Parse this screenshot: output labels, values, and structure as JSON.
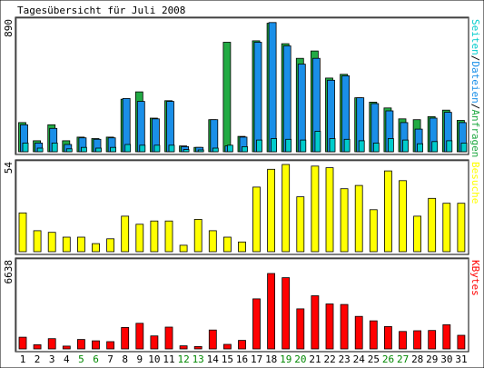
{
  "chart_data": [
    {
      "type": "bar",
      "title": "Tagesübersicht für Juli 2008",
      "ymax_label": "890",
      "legend_parts": [
        {
          "text": "Seiten",
          "color": "#00cccc"
        },
        {
          "text": "/",
          "color": "#000000"
        },
        {
          "text": "Dateien",
          "color": "#1a8fe8"
        },
        {
          "text": "/",
          "color": "#000000"
        },
        {
          "text": "Anfragen",
          "color": "#22aa44"
        }
      ],
      "ylim": [
        0,
        890
      ],
      "x": [
        1,
        2,
        3,
        4,
        5,
        6,
        7,
        8,
        9,
        10,
        11,
        12,
        13,
        14,
        15,
        16,
        17,
        18,
        19,
        20,
        21,
        22,
        23,
        24,
        25,
        26,
        27,
        28,
        29,
        30,
        31
      ],
      "series": [
        {
          "name": "Anfragen",
          "color": "#22aa44",
          "values": [
            200,
            75,
            185,
            75,
            100,
            90,
            100,
            360,
            410,
            230,
            350,
            40,
            30,
            220,
            750,
            105,
            760,
            880,
            740,
            640,
            690,
            505,
            530,
            370,
            340,
            300,
            225,
            220,
            240,
            285,
            215
          ]
        },
        {
          "name": "Dateien",
          "color": "#1a8fe8",
          "values": [
            185,
            60,
            160,
            50,
            95,
            85,
            95,
            365,
            345,
            225,
            345,
            35,
            30,
            220,
            40,
            100,
            750,
            885,
            725,
            600,
            640,
            490,
            520,
            370,
            330,
            280,
            200,
            155,
            230,
            270,
            200
          ]
        },
        {
          "name": "Seiten",
          "color": "#00cccc",
          "values": [
            60,
            25,
            60,
            20,
            30,
            25,
            30,
            50,
            45,
            45,
            45,
            15,
            10,
            25,
            45,
            35,
            80,
            90,
            85,
            80,
            140,
            90,
            85,
            75,
            60,
            90,
            80,
            55,
            70,
            75,
            60
          ]
        }
      ]
    },
    {
      "type": "bar",
      "ymax_label": "54",
      "legend": "Besuche",
      "ylim": [
        0,
        54
      ],
      "x": [
        1,
        2,
        3,
        4,
        5,
        6,
        7,
        8,
        9,
        10,
        11,
        12,
        13,
        14,
        15,
        16,
        17,
        18,
        19,
        20,
        21,
        22,
        23,
        24,
        25,
        26,
        27,
        28,
        29,
        30,
        31
      ],
      "series": [
        {
          "name": "Besuche",
          "color": "#ffff00",
          "values": [
            24,
            13,
            12,
            9,
            9,
            5,
            8,
            22,
            17,
            19,
            19,
            4,
            20,
            13,
            9,
            6,
            40,
            51,
            54,
            34,
            53,
            52,
            39,
            41,
            26,
            50,
            44,
            22,
            33,
            30,
            30
          ]
        }
      ]
    },
    {
      "type": "bar",
      "ymax_label": "6638",
      "legend": "KBytes",
      "ylim": [
        0,
        6638
      ],
      "x": [
        1,
        2,
        3,
        4,
        5,
        6,
        7,
        8,
        9,
        10,
        11,
        12,
        13,
        14,
        15,
        16,
        17,
        18,
        19,
        20,
        21,
        22,
        23,
        24,
        25,
        26,
        27,
        28,
        29,
        30,
        31
      ],
      "series": [
        {
          "name": "KBytes",
          "color": "#ff0000",
          "values": [
            900,
            320,
            790,
            220,
            730,
            620,
            560,
            1650,
            1970,
            1000,
            1680,
            240,
            180,
            1450,
            350,
            660,
            3850,
            5800,
            5480,
            3080,
            4090,
            3460,
            3420,
            2500,
            2160,
            1720,
            1340,
            1400,
            1420,
            1860,
            1050
          ]
        }
      ]
    }
  ],
  "x_label_colors": [
    "#000000",
    "#000000",
    "#000000",
    "#000000",
    "#008800",
    "#008800",
    "#000000",
    "#000000",
    "#000000",
    "#000000",
    "#000000",
    "#008800",
    "#008800",
    "#000000",
    "#000000",
    "#000000",
    "#000000",
    "#000000",
    "#008800",
    "#008800",
    "#000000",
    "#000000",
    "#000000",
    "#000000",
    "#000000",
    "#008800",
    "#008800",
    "#000000",
    "#000000",
    "#000000",
    "#000000"
  ]
}
